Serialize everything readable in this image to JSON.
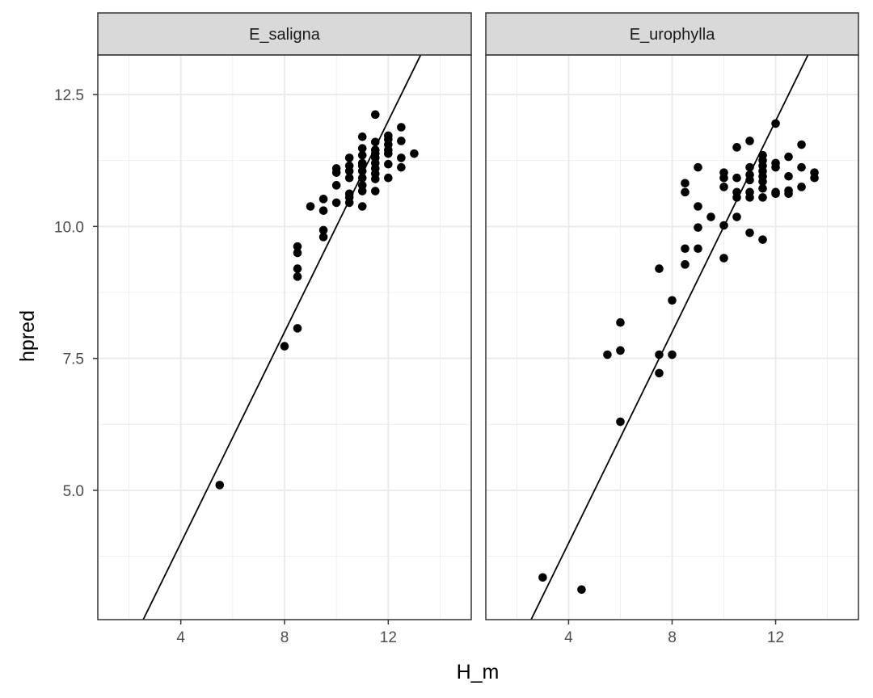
{
  "chart_data": {
    "type": "scatter",
    "xlabel": "H_m",
    "ylabel": "hpred",
    "xlim": [
      0.8,
      15.2
    ],
    "ylim": [
      2.55,
      13.25
    ],
    "x_ticks": [
      4,
      8,
      12
    ],
    "y_ticks": [
      5.0,
      7.5,
      10.0,
      12.5
    ],
    "x_tick_labels": [
      "4",
      "8",
      "12"
    ],
    "y_tick_labels": [
      "5.0",
      "7.5",
      "10.0",
      "12.5"
    ],
    "grid": true,
    "reference_line": "y = x",
    "colors": {
      "points": "#000000",
      "strip": "#d9d9d9",
      "grid": "#ebebeb",
      "border": "#333333"
    },
    "panels": [
      {
        "label": "E_saligna",
        "points": [
          [
            5.5,
            5.1
          ],
          [
            8.0,
            7.73
          ],
          [
            8.5,
            8.07
          ],
          [
            8.5,
            9.05
          ],
          [
            8.5,
            9.2
          ],
          [
            8.5,
            9.5
          ],
          [
            8.5,
            9.62
          ],
          [
            9.0,
            10.38
          ],
          [
            9.5,
            9.8
          ],
          [
            9.5,
            9.93
          ],
          [
            9.5,
            10.3
          ],
          [
            9.5,
            10.52
          ],
          [
            10.0,
            10.45
          ],
          [
            10.0,
            10.78
          ],
          [
            10.0,
            11.02
          ],
          [
            10.0,
            11.1
          ],
          [
            10.5,
            10.45
          ],
          [
            10.5,
            10.55
          ],
          [
            10.5,
            10.62
          ],
          [
            10.5,
            10.92
          ],
          [
            10.5,
            11.05
          ],
          [
            10.5,
            11.15
          ],
          [
            10.5,
            11.3
          ],
          [
            11.0,
            10.38
          ],
          [
            11.0,
            10.67
          ],
          [
            11.0,
            10.78
          ],
          [
            11.0,
            10.92
          ],
          [
            11.0,
            11.05
          ],
          [
            11.0,
            11.15
          ],
          [
            11.0,
            11.2
          ],
          [
            11.0,
            11.35
          ],
          [
            11.0,
            11.48
          ],
          [
            11.0,
            11.7
          ],
          [
            11.5,
            10.67
          ],
          [
            11.5,
            10.9
          ],
          [
            11.5,
            11.0
          ],
          [
            11.5,
            11.1
          ],
          [
            11.5,
            11.2
          ],
          [
            11.5,
            11.3
          ],
          [
            11.5,
            11.38
          ],
          [
            11.5,
            11.45
          ],
          [
            11.5,
            11.6
          ],
          [
            11.5,
            12.12
          ],
          [
            12.0,
            10.92
          ],
          [
            12.0,
            11.18
          ],
          [
            12.0,
            11.38
          ],
          [
            12.0,
            11.45
          ],
          [
            12.0,
            11.55
          ],
          [
            12.0,
            11.65
          ],
          [
            12.0,
            11.72
          ],
          [
            12.5,
            11.12
          ],
          [
            12.5,
            11.3
          ],
          [
            12.5,
            11.62
          ],
          [
            12.5,
            11.88
          ],
          [
            13.0,
            11.38
          ]
        ]
      },
      {
        "label": "E_urophylla",
        "points": [
          [
            3.0,
            3.35
          ],
          [
            4.5,
            3.12
          ],
          [
            5.5,
            7.57
          ],
          [
            6.0,
            6.3
          ],
          [
            6.0,
            7.65
          ],
          [
            6.0,
            8.18
          ],
          [
            7.5,
            7.22
          ],
          [
            7.5,
            7.57
          ],
          [
            7.5,
            9.2
          ],
          [
            8.0,
            7.57
          ],
          [
            8.0,
            8.6
          ],
          [
            8.5,
            9.28
          ],
          [
            8.5,
            9.58
          ],
          [
            8.5,
            10.65
          ],
          [
            8.5,
            10.82
          ],
          [
            9.0,
            9.58
          ],
          [
            9.0,
            9.98
          ],
          [
            9.0,
            10.38
          ],
          [
            9.0,
            11.12
          ],
          [
            9.5,
            10.18
          ],
          [
            10.0,
            9.4
          ],
          [
            10.0,
            10.02
          ],
          [
            10.0,
            10.75
          ],
          [
            10.0,
            10.92
          ],
          [
            10.0,
            11.02
          ],
          [
            10.5,
            10.18
          ],
          [
            10.5,
            10.55
          ],
          [
            10.5,
            10.65
          ],
          [
            10.5,
            10.92
          ],
          [
            10.5,
            11.5
          ],
          [
            11.0,
            9.88
          ],
          [
            11.0,
            10.55
          ],
          [
            11.0,
            10.65
          ],
          [
            11.0,
            10.88
          ],
          [
            11.0,
            10.98
          ],
          [
            11.0,
            11.12
          ],
          [
            11.0,
            11.62
          ],
          [
            11.5,
            9.75
          ],
          [
            11.5,
            10.55
          ],
          [
            11.5,
            10.72
          ],
          [
            11.5,
            10.85
          ],
          [
            11.5,
            10.95
          ],
          [
            11.5,
            11.05
          ],
          [
            11.5,
            11.15
          ],
          [
            11.5,
            11.25
          ],
          [
            11.5,
            11.35
          ],
          [
            12.0,
            10.62
          ],
          [
            12.0,
            10.65
          ],
          [
            12.0,
            11.12
          ],
          [
            12.0,
            11.2
          ],
          [
            12.0,
            11.95
          ],
          [
            12.5,
            10.62
          ],
          [
            12.5,
            10.68
          ],
          [
            12.5,
            10.95
          ],
          [
            12.5,
            11.32
          ],
          [
            13.0,
            10.75
          ],
          [
            13.0,
            11.12
          ],
          [
            13.0,
            11.55
          ],
          [
            13.5,
            10.92
          ],
          [
            13.5,
            11.02
          ]
        ]
      }
    ]
  }
}
